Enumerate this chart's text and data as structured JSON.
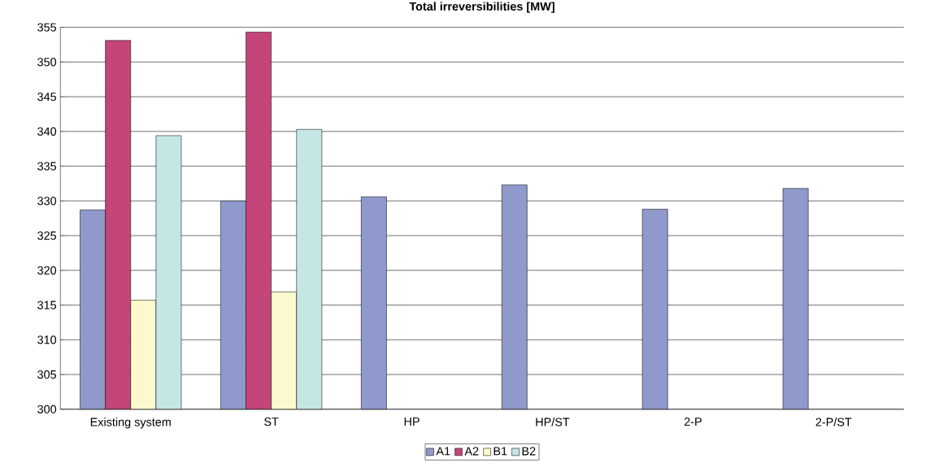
{
  "chart_data": {
    "type": "bar",
    "title": "Total irreversibilities [MW]",
    "categories": [
      "Existing system",
      "ST",
      "HP",
      "HP/ST",
      "2-P",
      "2-P/ST"
    ],
    "series": [
      {
        "name": "A1",
        "color": "#9099cc",
        "values": [
          328.7,
          330.0,
          330.6,
          332.3,
          328.8,
          331.8
        ]
      },
      {
        "name": "A2",
        "color": "#c4457a",
        "values": [
          353.1,
          354.3,
          null,
          null,
          null,
          null
        ]
      },
      {
        "name": "B1",
        "color": "#fcf9cc",
        "values": [
          315.7,
          316.9,
          null,
          null,
          null,
          null
        ]
      },
      {
        "name": "B2",
        "color": "#c6e6e6",
        "values": [
          339.4,
          340.3,
          null,
          null,
          null,
          null
        ]
      }
    ],
    "ylim": [
      300,
      355
    ],
    "yticks": [
      300,
      305,
      310,
      315,
      320,
      325,
      330,
      335,
      340,
      345,
      350,
      355
    ],
    "grid": "y",
    "legend": "bottom"
  }
}
